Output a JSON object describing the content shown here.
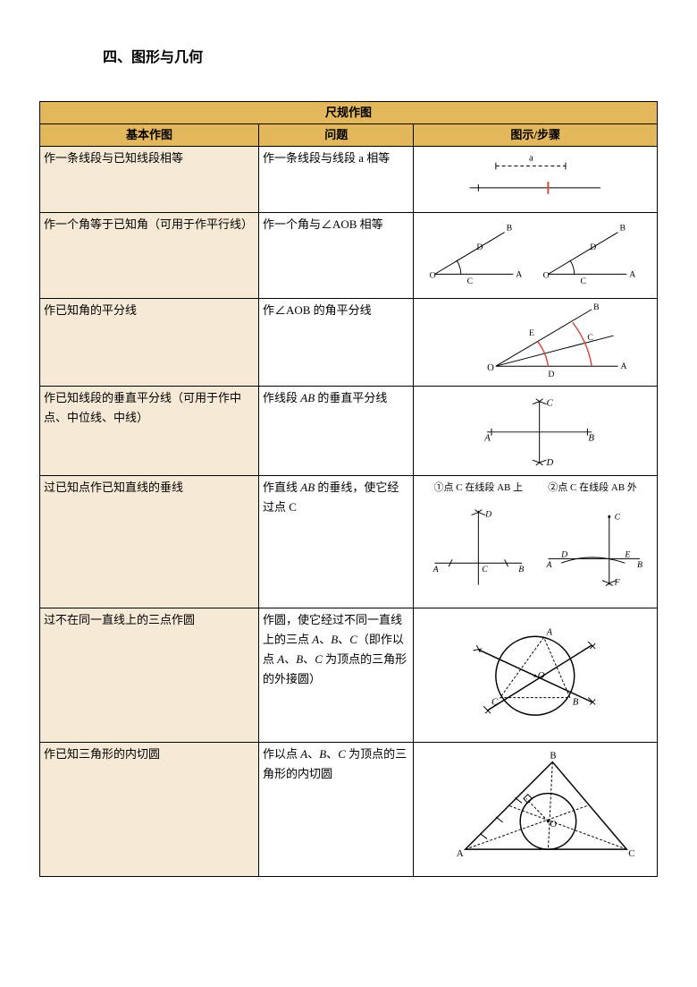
{
  "title": "四、图形与几何",
  "table": {
    "main_header": "尺规作图",
    "col_headers": [
      "基本作图",
      "问题",
      "图示/步骤"
    ],
    "rows": [
      {
        "basic": "作一条线段与已知线段相等",
        "problem": "作一条线段与线段 a 相等",
        "svg": {
          "type": "segment",
          "colors": {
            "line": "#000000",
            "tick": "#d44a3a"
          }
        }
      },
      {
        "basic": "作一个角等于已知角（可用于作平行线）",
        "problem": "作一个角与∠AOB 相等",
        "svg": {
          "type": "angle",
          "colors": {
            "line": "#000000"
          }
        }
      },
      {
        "basic": "作已知角的平分线",
        "problem": "作∠AOB 的角平分线",
        "svg": {
          "type": "bisector",
          "colors": {
            "line": "#000000",
            "arc": "#d44a3a"
          }
        }
      },
      {
        "basic": "作已知线段的垂直平分线（可用于作中点、中位线、中线）",
        "problem_html": "作线段 <span class='it'>AB</span> 的垂直平分线",
        "svg": {
          "type": "perpbis",
          "colors": {
            "line": "#000000"
          }
        }
      },
      {
        "basic": "过已知点作已知直线的垂线",
        "problem_html": "作直线 <span class='it'>AB</span> 的垂线，使它经过点 C",
        "caption1": "①点 C 在线段 AB 上",
        "caption2": "②点 C 在线段 AB 外",
        "svg": {
          "type": "perpline",
          "colors": {
            "line": "#000000"
          }
        }
      },
      {
        "basic": "过不在同一直线上的三点作圆",
        "problem_html": "作圆，使它经过不同一直线上的三点 <span class='it'>A</span>、<span class='it'>B</span>、<span class='it'>C</span>（即作以点 <span class='it'>A</span>、<span class='it'>B</span>、<span class='it'>C</span> 为顶点的三角形的外接圆）",
        "svg": {
          "type": "circumcircle",
          "colors": {
            "line": "#000000"
          }
        }
      },
      {
        "basic": "作已知三角形的内切圆",
        "problem_html": "作以点 <span class='it'>A</span>、<span class='it'>B</span>、<span class='it'>C</span> 为顶点的三角形的内切圆",
        "svg": {
          "type": "incircle",
          "colors": {
            "line": "#000000"
          }
        }
      }
    ]
  }
}
